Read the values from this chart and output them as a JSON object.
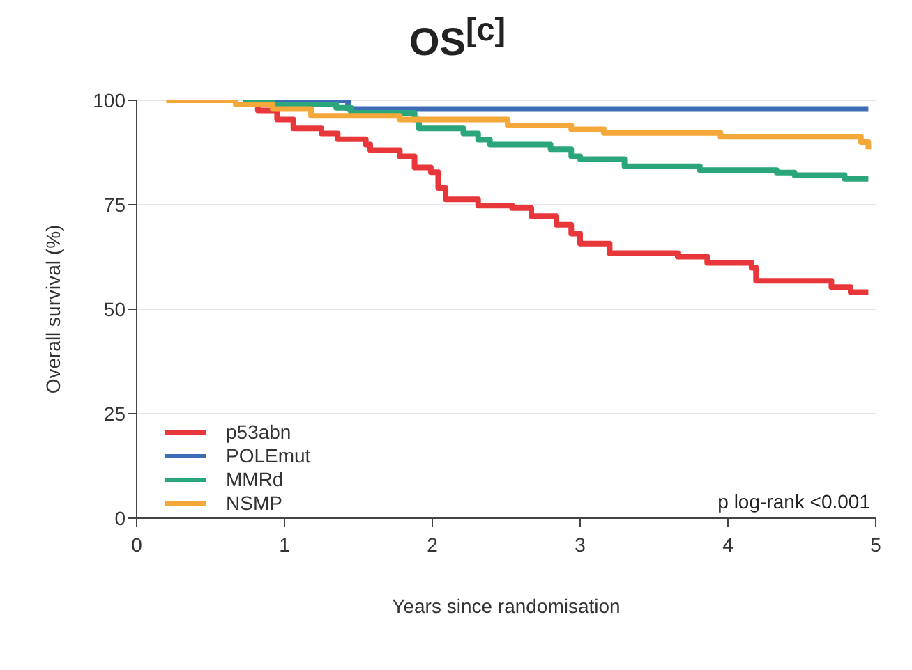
{
  "chart_data": {
    "type": "step",
    "title": "OS$^{[c]}$",
    "xlabel": "Years since randomisation",
    "ylabel": "Overall survival (%)",
    "annotations": [
      "p log-rank <0.001"
    ],
    "series": [
      {
        "name": "p53abn",
        "color": "#e8373a",
        "x": [
          0.75,
          0.82,
          0.95,
          1.06,
          1.25,
          1.36,
          1.55,
          1.58,
          1.78,
          1.88,
          1.99,
          2.04,
          2.09,
          2.31,
          2.54,
          2.67,
          2.84,
          2.94,
          3.0,
          3.2,
          3.66,
          3.86,
          4.16,
          4.19,
          4.7,
          4.83,
          4.95
        ],
        "values": [
          100,
          97.6,
          95.4,
          93.3,
          92.1,
          90.7,
          89.4,
          88.1,
          86.6,
          83.9,
          82.8,
          79,
          76.3,
          74.8,
          74.2,
          72.3,
          70.2,
          68.1,
          65.7,
          63.4,
          62.6,
          61.1,
          59.9,
          56.8,
          55.3,
          54.1,
          54.1
        ]
      },
      {
        "name": "POLEmut",
        "color": "#3e6cb6",
        "x": [
          0.72,
          1.43,
          4.95
        ],
        "values": [
          100,
          97.9,
          97.9
        ]
      },
      {
        "name": "MMRd",
        "color": "#2aa67a",
        "x": [
          0.72,
          0.92,
          1.35,
          1.45,
          1.88,
          1.91,
          2.21,
          2.31,
          2.39,
          2.8,
          2.94,
          3.0,
          3.3,
          3.81,
          4.33,
          4.45,
          4.79,
          4.95
        ],
        "values": [
          100,
          99,
          98.2,
          97,
          95.4,
          93.3,
          92.1,
          90.6,
          89.4,
          88.3,
          86.6,
          85.9,
          84.2,
          83.3,
          82.7,
          82.1,
          81.2,
          81.2
        ]
      },
      {
        "name": "NSMP",
        "color": "#f5a83a",
        "x": [
          0.2,
          0.67,
          0.92,
          1.18,
          1.78,
          2.51,
          2.94,
          3.16,
          3.95,
          4.9,
          4.95
        ],
        "values": [
          100,
          99,
          97.9,
          96.3,
          95.4,
          94,
          93.1,
          92.2,
          91.3,
          90,
          88.3
        ]
      }
    ],
    "xlim": [
      0,
      5
    ],
    "xticks": [
      0,
      1,
      2,
      3,
      4,
      5
    ],
    "ylim": [
      0,
      100
    ],
    "yticks": [
      0,
      25,
      50,
      75,
      100
    ],
    "grid": "y",
    "legend": "bottom left",
    "marker": "none",
    "line_style": "solid"
  }
}
